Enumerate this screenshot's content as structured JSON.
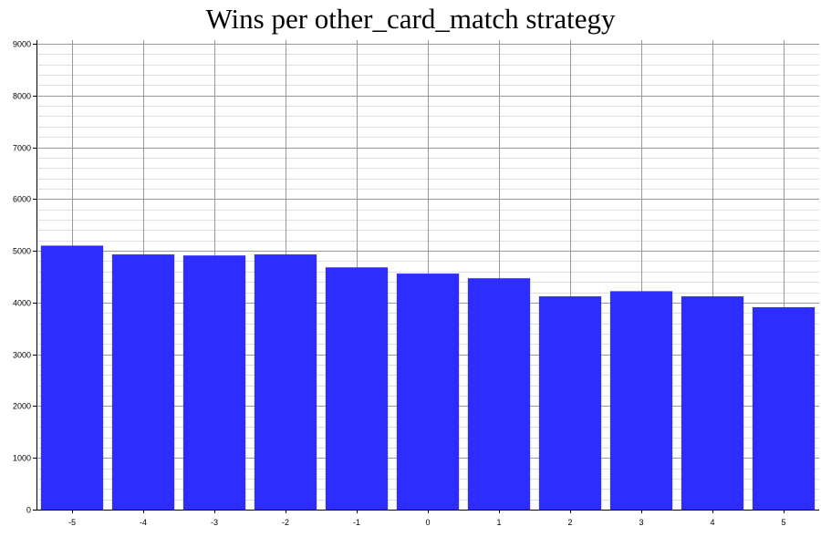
{
  "chart_data": {
    "type": "bar",
    "title": "Wins per other_card_match strategy",
    "xlabel": "",
    "ylabel": "",
    "categories": [
      "-5",
      "-4",
      "-3",
      "-2",
      "-1",
      "0",
      "1",
      "2",
      "3",
      "4",
      "5"
    ],
    "values": [
      5100,
      4930,
      4910,
      4930,
      4680,
      4560,
      4470,
      4120,
      4220,
      4120,
      3910
    ],
    "ylim": [
      0,
      9000
    ],
    "yticks": [
      "0",
      "1000",
      "2000",
      "3000",
      "4000",
      "5000",
      "6000",
      "7000",
      "8000",
      "9000"
    ],
    "grid": true,
    "minor_grid": true,
    "legend": "none",
    "colors": {
      "bar": "#2a2aff",
      "major_grid": "#999999",
      "minor_grid": "#e0e0e0",
      "axis": "#000000"
    }
  }
}
